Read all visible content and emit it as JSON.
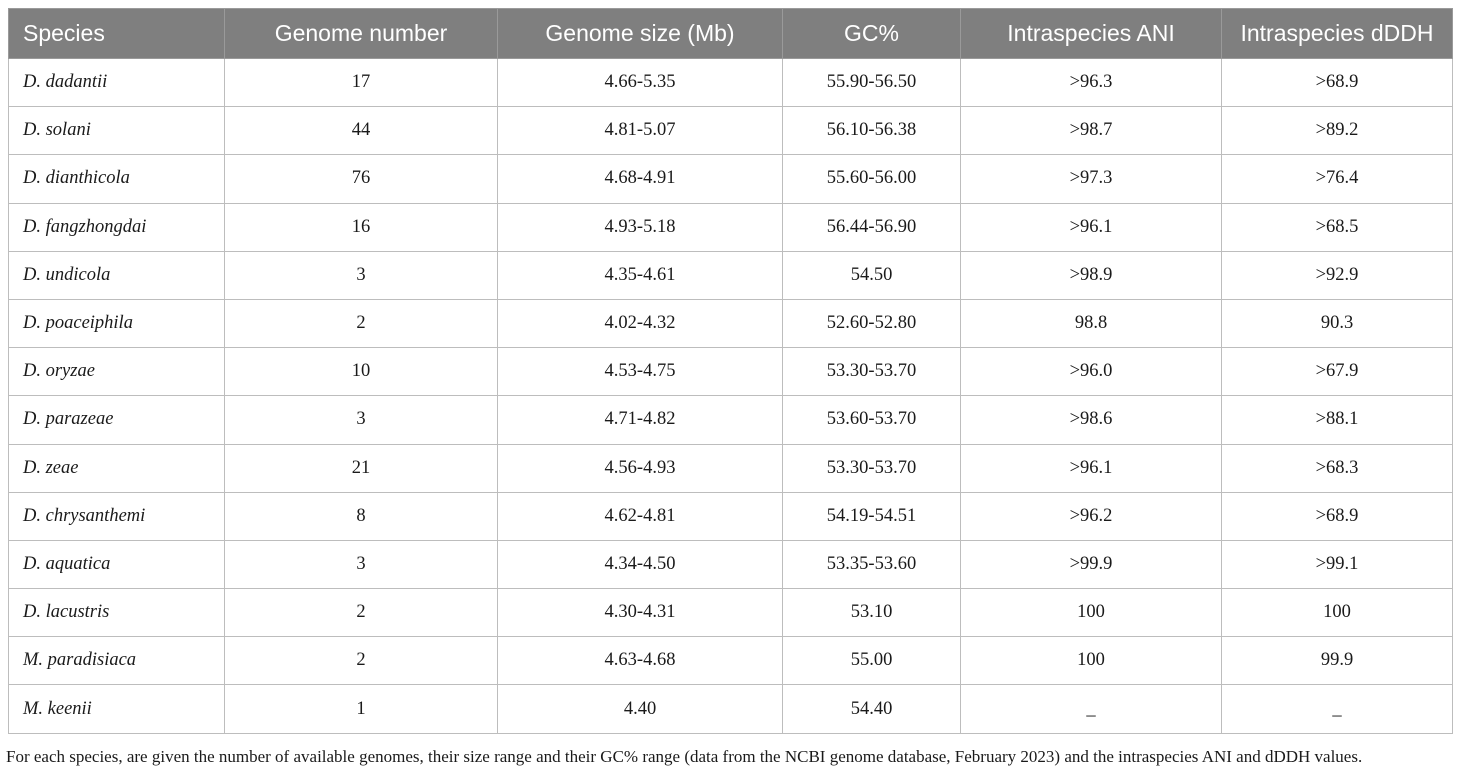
{
  "table": {
    "headers": [
      "Species",
      "Genome number",
      "Genome size (Mb)",
      "GC%",
      "Intraspecies ANI",
      "Intraspecies dDDH"
    ],
    "rows": [
      [
        "D. dadantii",
        "17",
        "4.66-5.35",
        "55.90-56.50",
        ">96.3",
        ">68.9"
      ],
      [
        "D. solani",
        "44",
        "4.81-5.07",
        "56.10-56.38",
        ">98.7",
        ">89.2"
      ],
      [
        "D. dianthicola",
        "76",
        "4.68-4.91",
        "55.60-56.00",
        ">97.3",
        ">76.4"
      ],
      [
        "D. fangzhongdai",
        "16",
        "4.93-5.18",
        "56.44-56.90",
        ">96.1",
        ">68.5"
      ],
      [
        "D. undicola",
        "3",
        "4.35-4.61",
        "54.50",
        ">98.9",
        ">92.9"
      ],
      [
        "D. poaceiphila",
        "2",
        "4.02-4.32",
        "52.60-52.80",
        "98.8",
        "90.3"
      ],
      [
        "D. oryzae",
        "10",
        "4.53-4.75",
        "53.30-53.70",
        ">96.0",
        ">67.9"
      ],
      [
        "D. parazeae",
        "3",
        "4.71-4.82",
        "53.60-53.70",
        ">98.6",
        ">88.1"
      ],
      [
        "D. zeae",
        "21",
        "4.56-4.93",
        "53.30-53.70",
        ">96.1",
        ">68.3"
      ],
      [
        "D. chrysanthemi",
        "8",
        "4.62-4.81",
        "54.19-54.51",
        ">96.2",
        ">68.9"
      ],
      [
        "D. aquatica",
        "3",
        "4.34-4.50",
        "53.35-53.60",
        ">99.9",
        ">99.1"
      ],
      [
        "D. lacustris",
        "2",
        "4.30-4.31",
        "53.10",
        "100",
        "100"
      ],
      [
        "M. paradisiaca",
        "2",
        "4.63-4.68",
        "55.00",
        "100",
        "99.9"
      ],
      [
        "M. keenii",
        "1",
        "4.40",
        "54.40",
        "_",
        "_"
      ]
    ]
  },
  "footnote": "For each species, are given the number of available genomes, their size range and their GC% range (data from the NCBI genome database, February 2023) and the intraspecies ANI and dDDH values.",
  "colors": {
    "header_bg": "#7f7f7f",
    "header_text": "#ffffff",
    "border": "#bdbdbd"
  }
}
